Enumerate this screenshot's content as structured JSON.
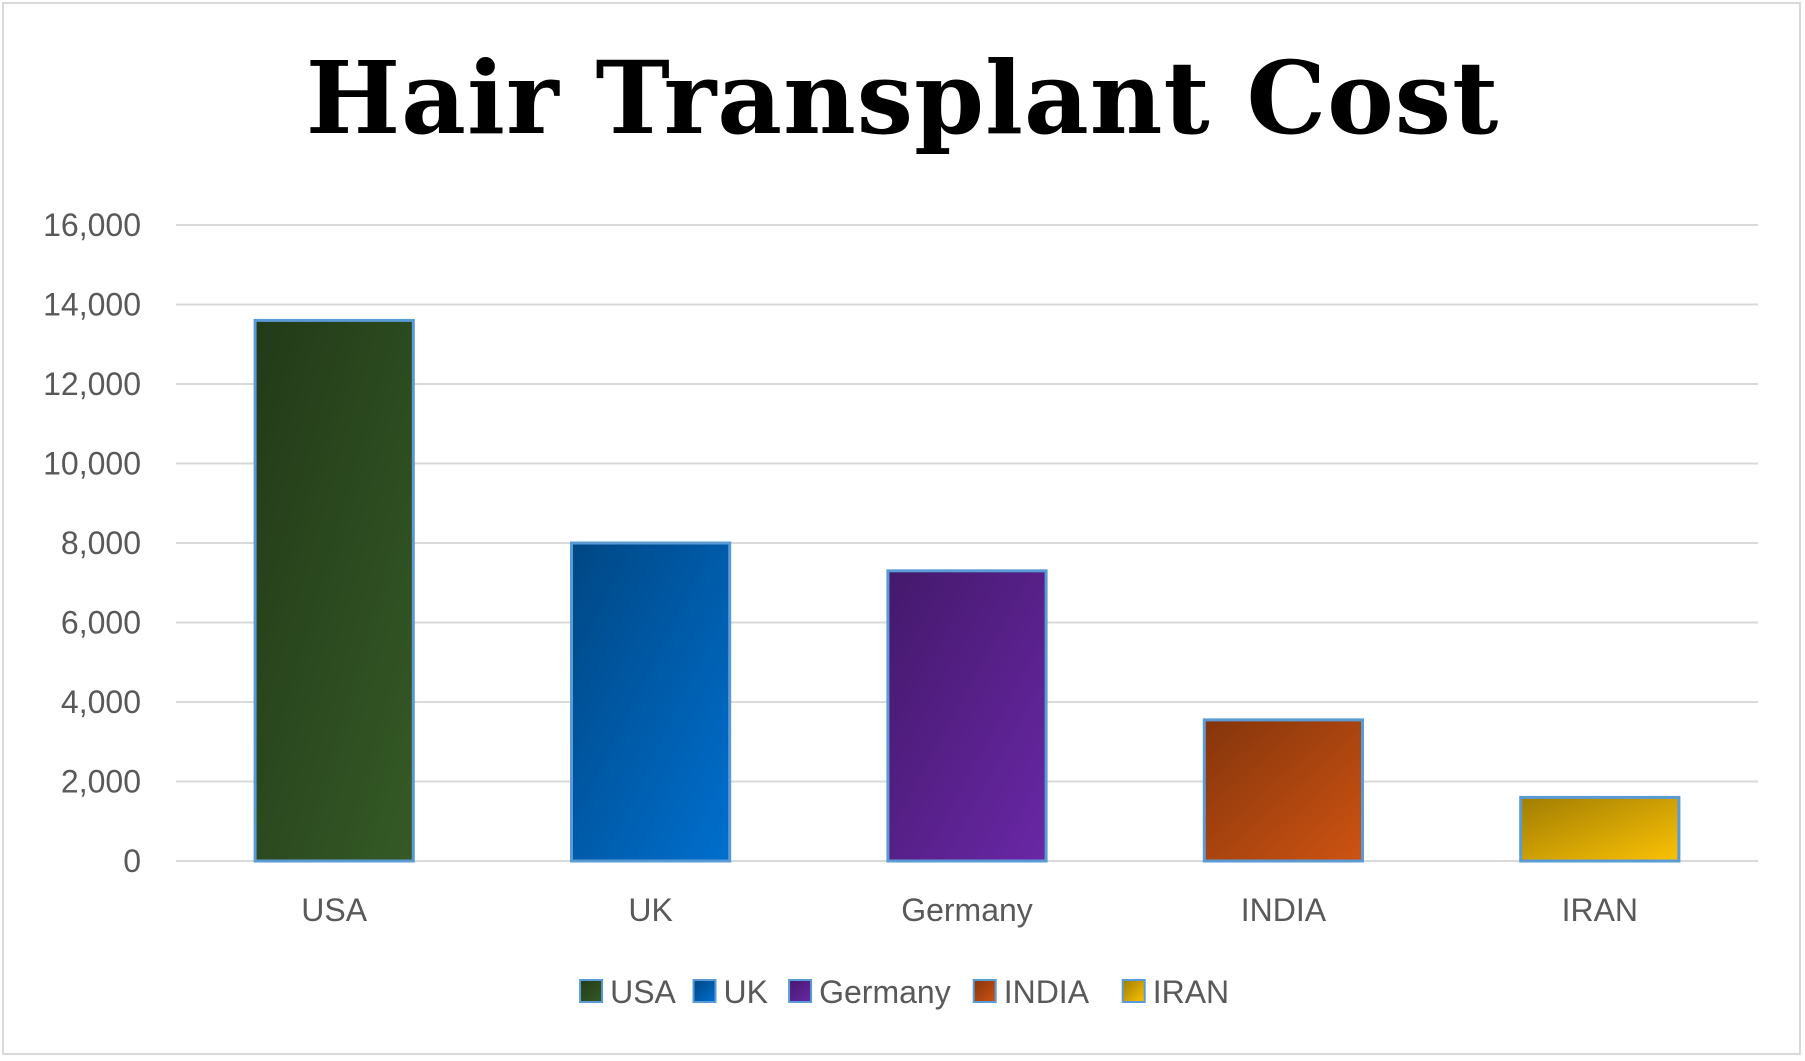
{
  "chart_data": {
    "type": "bar",
    "title": "Hair Transplant Cost",
    "categories": [
      "USA",
      "UK",
      "Germany",
      "INDIA",
      "IRAN"
    ],
    "values": [
      13600,
      8000,
      7300,
      3550,
      1600
    ],
    "colors": [
      "#2f5022",
      "#0063b8",
      "#5e2394",
      "#b84a10",
      "#e0ad04"
    ],
    "ylim": [
      0,
      16000
    ],
    "yticks": [
      0,
      2000,
      4000,
      6000,
      8000,
      10000,
      12000,
      14000,
      16000
    ],
    "ytick_labels": [
      "0",
      "2,000",
      "4,000",
      "6,000",
      "8,000",
      "10,000",
      "12,000",
      "14,000",
      "16,000"
    ],
    "xlabel": "",
    "ylabel": "",
    "grid": true,
    "legend": {
      "position": "bottom",
      "entries": [
        "USA",
        "UK",
        "Germany",
        "INDIA",
        "IRAN"
      ]
    }
  }
}
